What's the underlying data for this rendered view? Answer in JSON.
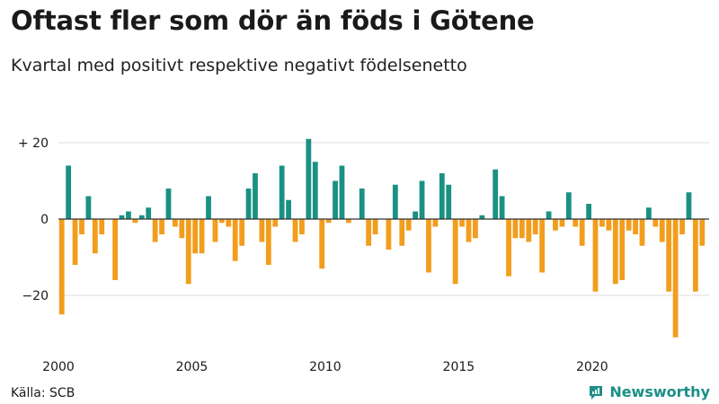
{
  "title": "Oftast fler som dör än föds i Götene",
  "subtitle": "Kvartal med positivt respektive negativt födelsenetto",
  "source": "Källa: SCB",
  "brand": "Newsworthy",
  "colors": {
    "positive": "#1a9183",
    "negative": "#f29d1c",
    "grid": "#dddddd",
    "axis": "#333333",
    "brand": "#1b8f87"
  },
  "chart_data": {
    "type": "bar",
    "title": "Oftast fler som dör än föds i Götene",
    "subtitle": "Kvartal med positivt respektive negativt födelsenetto",
    "xlabel": "",
    "ylabel": "",
    "ylim": [
      -32,
      22
    ],
    "yticks": [
      20,
      0,
      -20
    ],
    "ytick_labels": [
      "+ 20",
      "0",
      "−20"
    ],
    "xticks": [
      "2000",
      "2005",
      "2010",
      "2015",
      "2020"
    ],
    "grid": true,
    "start_year": 2000,
    "quarters_per_year": 4,
    "values": [
      -25,
      14,
      -12,
      -4,
      6,
      -9,
      -4,
      0,
      -16,
      1,
      2,
      -1,
      1,
      3,
      -6,
      -4,
      8,
      -2,
      -5,
      -17,
      -9,
      -9,
      6,
      -6,
      -1,
      -2,
      -11,
      -7,
      8,
      12,
      -6,
      -12,
      -2,
      14,
      5,
      -6,
      -4,
      21,
      15,
      -13,
      -1,
      10,
      14,
      -1,
      0,
      8,
      -7,
      -4,
      0,
      -8,
      9,
      -7,
      -3,
      2,
      10,
      -14,
      -2,
      12,
      9,
      -17,
      -2,
      -6,
      -5,
      1,
      0,
      13,
      6,
      -15,
      -5,
      -5,
      -6,
      -4,
      -14,
      2,
      -3,
      -2,
      7,
      -2,
      -7,
      4,
      -19,
      -2,
      -3,
      -17,
      -16,
      -3,
      -4,
      -7,
      3,
      -2,
      -6,
      -19,
      -31,
      -4,
      7,
      -19,
      -7
    ]
  }
}
